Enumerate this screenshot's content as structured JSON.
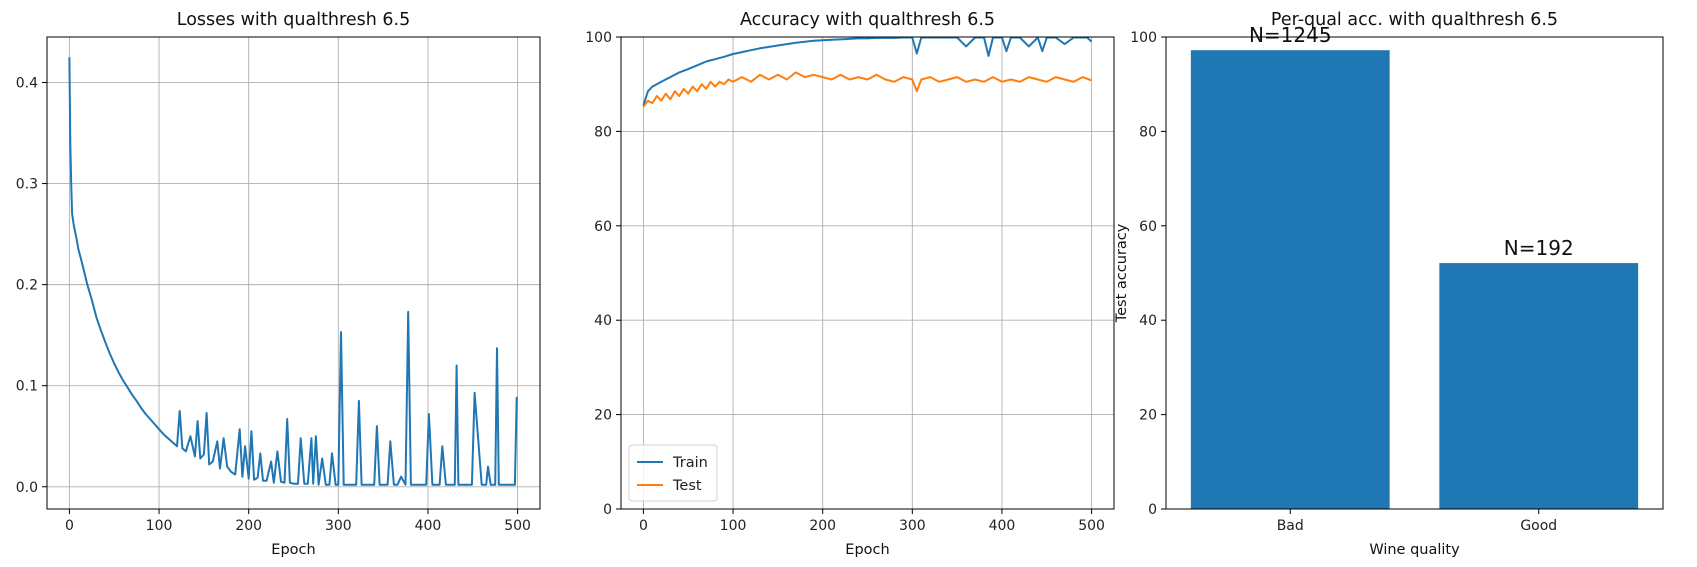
{
  "chart_data": [
    {
      "type": "line",
      "title": "Losses with qualthresh 6.5",
      "xlabel": "Epoch",
      "ylabel": "",
      "xlim": [
        -25,
        525
      ],
      "ylim": [
        -0.022,
        0.445
      ],
      "xticks": [
        0,
        100,
        200,
        300,
        400,
        500
      ],
      "yticks": [
        0.0,
        0.1,
        0.2,
        0.3,
        0.4
      ],
      "ytick_labels": [
        "0.0",
        "0.1",
        "0.2",
        "0.3",
        "0.4"
      ],
      "grid": true,
      "series": [
        {
          "color": "#1f77b4",
          "x": [
            0,
            1,
            2,
            3,
            5,
            8,
            10,
            15,
            20,
            25,
            30,
            35,
            40,
            45,
            50,
            55,
            60,
            65,
            70,
            75,
            80,
            85,
            90,
            95,
            100,
            105,
            110,
            115,
            120,
            123,
            126,
            130,
            135,
            140,
            143,
            146,
            150,
            153,
            156,
            160,
            165,
            168,
            172,
            176,
            180,
            185,
            190,
            193,
            196,
            200,
            203,
            206,
            210,
            213,
            216,
            220,
            225,
            228,
            232,
            236,
            240,
            243,
            246,
            250,
            255,
            258,
            262,
            266,
            270,
            272,
            275,
            278,
            282,
            286,
            290,
            293,
            297,
            300,
            303,
            306,
            310,
            315,
            320,
            323,
            326,
            330,
            335,
            340,
            343,
            346,
            350,
            355,
            358,
            362,
            366,
            370,
            375,
            378,
            381,
            385,
            390,
            395,
            398,
            401,
            405,
            410,
            413,
            416,
            420,
            425,
            430,
            432,
            434,
            440,
            445,
            449,
            452,
            460,
            465,
            467,
            470,
            475,
            477,
            479,
            485,
            490,
            495,
            497,
            499,
            500
          ],
          "values": [
            0.425,
            0.34,
            0.3,
            0.27,
            0.258,
            0.245,
            0.235,
            0.218,
            0.2,
            0.185,
            0.168,
            0.155,
            0.143,
            0.132,
            0.122,
            0.113,
            0.105,
            0.098,
            0.091,
            0.085,
            0.078,
            0.072,
            0.067,
            0.062,
            0.057,
            0.052,
            0.048,
            0.044,
            0.04,
            0.075,
            0.038,
            0.035,
            0.05,
            0.03,
            0.065,
            0.028,
            0.032,
            0.073,
            0.022,
            0.025,
            0.045,
            0.018,
            0.048,
            0.02,
            0.015,
            0.012,
            0.057,
            0.01,
            0.04,
            0.008,
            0.055,
            0.007,
            0.009,
            0.033,
            0.006,
            0.006,
            0.025,
            0.004,
            0.035,
            0.005,
            0.004,
            0.067,
            0.004,
            0.003,
            0.003,
            0.048,
            0.003,
            0.003,
            0.048,
            0.003,
            0.05,
            0.002,
            0.028,
            0.002,
            0.002,
            0.033,
            0.002,
            0.002,
            0.153,
            0.002,
            0.002,
            0.002,
            0.002,
            0.085,
            0.002,
            0.002,
            0.002,
            0.002,
            0.06,
            0.002,
            0.002,
            0.002,
            0.045,
            0.002,
            0.002,
            0.01,
            0.002,
            0.173,
            0.002,
            0.002,
            0.002,
            0.002,
            0.002,
            0.072,
            0.002,
            0.002,
            0.002,
            0.04,
            0.002,
            0.002,
            0.002,
            0.12,
            0.002,
            0.002,
            0.002,
            0.002,
            0.093,
            0.002,
            0.002,
            0.02,
            0.002,
            0.002,
            0.137,
            0.002,
            0.002,
            0.002,
            0.002,
            0.002,
            0.088,
            0.088
          ]
        }
      ]
    },
    {
      "type": "line",
      "title": "Accuracy with qualthresh 6.5",
      "xlabel": "Epoch",
      "ylabel": "",
      "xlim": [
        -25,
        525
      ],
      "ylim": [
        0,
        100
      ],
      "xticks": [
        0,
        100,
        200,
        300,
        400,
        500
      ],
      "yticks": [
        0,
        20,
        40,
        60,
        80,
        100
      ],
      "ytick_labels": [
        "0",
        "20",
        "40",
        "60",
        "80",
        "100"
      ],
      "grid": true,
      "legend": "lower-left",
      "series": [
        {
          "name": "Train",
          "color": "#1f77b4",
          "x": [
            0,
            5,
            10,
            20,
            30,
            40,
            50,
            60,
            70,
            80,
            90,
            100,
            110,
            120,
            130,
            140,
            150,
            160,
            170,
            180,
            190,
            200,
            210,
            220,
            230,
            240,
            250,
            260,
            270,
            280,
            290,
            300,
            305,
            310,
            320,
            330,
            340,
            350,
            360,
            370,
            380,
            385,
            390,
            400,
            405,
            410,
            420,
            430,
            440,
            445,
            450,
            460,
            470,
            480,
            490,
            495,
            500
          ],
          "values": [
            85.5,
            88.5,
            89.5,
            90.5,
            91.5,
            92.5,
            93.2,
            94,
            94.8,
            95.3,
            95.8,
            96.4,
            96.8,
            97.2,
            97.6,
            97.9,
            98.2,
            98.5,
            98.8,
            99,
            99.2,
            99.3,
            99.4,
            99.5,
            99.6,
            99.7,
            99.7,
            99.8,
            99.8,
            99.8,
            99.9,
            99.9,
            96.5,
            99.9,
            99.9,
            99.9,
            99.9,
            99.9,
            98,
            99.9,
            99.9,
            96,
            99.9,
            99.9,
            97,
            99.9,
            99.9,
            98,
            99.9,
            97,
            99.9,
            99.9,
            98.5,
            99.9,
            99.9,
            99.9,
            99
          ]
        },
        {
          "name": "Test",
          "color": "#ff7f0e",
          "x": [
            0,
            5,
            10,
            15,
            20,
            25,
            30,
            35,
            40,
            45,
            50,
            55,
            60,
            65,
            70,
            75,
            80,
            85,
            90,
            95,
            100,
            110,
            120,
            130,
            140,
            150,
            160,
            170,
            180,
            190,
            200,
            210,
            220,
            230,
            240,
            250,
            260,
            270,
            280,
            290,
            300,
            305,
            310,
            320,
            330,
            340,
            350,
            360,
            370,
            380,
            390,
            400,
            410,
            420,
            430,
            440,
            450,
            460,
            470,
            480,
            490,
            500
          ],
          "values": [
            85.2,
            86.5,
            86,
            87.5,
            86.5,
            88,
            86.8,
            88.5,
            87.5,
            89,
            88,
            89.5,
            88.5,
            90,
            89,
            90.5,
            89.5,
            90.5,
            90,
            91,
            90.5,
            91.5,
            90.5,
            92,
            91,
            92,
            91,
            92.5,
            91.5,
            92,
            91.5,
            91,
            92,
            91,
            91.5,
            91,
            92,
            91,
            90.5,
            91.5,
            91,
            88.5,
            91,
            91.5,
            90.5,
            91,
            91.5,
            90.5,
            91,
            90.5,
            91.5,
            90.5,
            91,
            90.5,
            91.5,
            91,
            90.5,
            91.5,
            91,
            90.5,
            91.5,
            90.8
          ]
        }
      ]
    },
    {
      "type": "bar",
      "title": "Per-qual acc. with qualthresh 6.5",
      "xlabel": "Wine quality",
      "ylabel": "Test accuracy",
      "ylim": [
        0,
        100
      ],
      "yticks": [
        0,
        20,
        40,
        60,
        80,
        100
      ],
      "ytick_labels": [
        "0",
        "20",
        "40",
        "60",
        "80",
        "100"
      ],
      "categories": [
        "Bad",
        "Good"
      ],
      "values": [
        97.2,
        52.1
      ],
      "bar_labels": [
        "N=1245",
        "N=192"
      ],
      "color": "#1f77b4"
    }
  ]
}
